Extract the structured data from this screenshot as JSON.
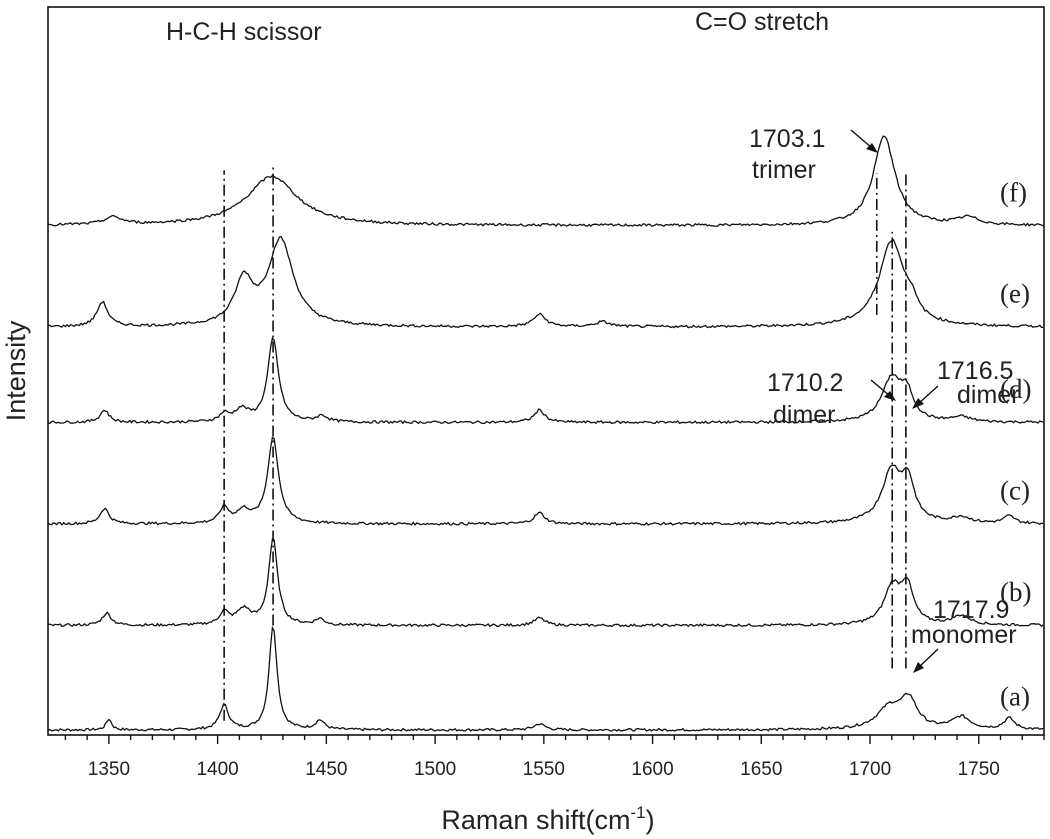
{
  "chart_data": {
    "type": "line",
    "title": "",
    "xlabel": "Raman shift(cm",
    "xlabel_sup": "-1",
    "xlabel_end": ")",
    "ylabel": "Intensity",
    "xlim": [
      1322,
      1780
    ],
    "ylim": [
      0,
      1
    ],
    "x_ticks": [
      1350,
      1400,
      1450,
      1500,
      1550,
      1600,
      1650,
      1700,
      1750
    ],
    "x_minor_step": 10,
    "grid": false,
    "legend": "none",
    "series": [
      {
        "name": "(a)",
        "offset": 0.0,
        "peaks": [
          [
            1350,
            1.5,
            0.018
          ],
          [
            1403,
            2.5,
            0.04
          ],
          [
            1425.5,
            2.2,
            0.17
          ],
          [
            1447,
            2.5,
            0.015
          ],
          [
            1548,
            3,
            0.01
          ],
          [
            1709,
            7,
            0.035
          ],
          [
            1717.9,
            4.5,
            0.045
          ],
          [
            1742,
            5,
            0.02
          ],
          [
            1764,
            3,
            0.018
          ]
        ]
      },
      {
        "name": "(b)",
        "offset": 0.17,
        "peaks": [
          [
            1349,
            2.5,
            0.02
          ],
          [
            1403,
            2.5,
            0.02
          ],
          [
            1412,
            4,
            0.025
          ],
          [
            1425.5,
            2.5,
            0.14
          ],
          [
            1447,
            2.5,
            0.01
          ],
          [
            1548,
            3,
            0.012
          ],
          [
            1710.2,
            4.5,
            0.06
          ],
          [
            1717,
            3.5,
            0.06
          ],
          [
            1742,
            5,
            0.015
          ]
        ]
      },
      {
        "name": "(c)",
        "offset": 0.335,
        "peaks": [
          [
            1348,
            2.5,
            0.025
          ],
          [
            1403,
            2.5,
            0.025
          ],
          [
            1412,
            4,
            0.02
          ],
          [
            1425.5,
            3,
            0.14
          ],
          [
            1548,
            3,
            0.018
          ],
          [
            1710,
            5.5,
            0.085
          ],
          [
            1717.5,
            3.5,
            0.06
          ],
          [
            1742,
            5,
            0.01
          ],
          [
            1764,
            3,
            0.012
          ]
        ]
      },
      {
        "name": "(d)",
        "offset": 0.5,
        "peaks": [
          [
            1348,
            2.5,
            0.02
          ],
          [
            1403,
            2.5,
            0.012
          ],
          [
            1411,
            4,
            0.02
          ],
          [
            1425.5,
            3,
            0.135
          ],
          [
            1448,
            3,
            0.01
          ],
          [
            1548,
            3,
            0.02
          ],
          [
            1710,
            5.5,
            0.07
          ],
          [
            1717,
            3.5,
            0.04
          ],
          [
            1742,
            5,
            0.008
          ]
        ]
      },
      {
        "name": "(e)",
        "offset": 0.655,
        "peaks": [
          [
            1347,
            3,
            0.04
          ],
          [
            1412,
            5,
            0.07
          ],
          [
            1429,
            7,
            0.14
          ],
          [
            1548,
            3.5,
            0.02
          ],
          [
            1577,
            4,
            0.008
          ],
          [
            1710,
            7,
            0.14
          ],
          [
            1719,
            3,
            0.02
          ]
        ]
      },
      {
        "name": "(f)",
        "offset": 0.82,
        "peaks": [
          [
            1352,
            5,
            0.012
          ],
          [
            1425,
            14,
            0.08
          ],
          [
            1706.5,
            6,
            0.145
          ],
          [
            1745,
            6,
            0.012
          ]
        ]
      }
    ],
    "ref_lines": [
      {
        "x": 1403,
        "from": 0.015,
        "to": 0.91
      },
      {
        "x": 1425.5,
        "from": 0.17,
        "to": 0.92
      },
      {
        "x": 1703.1,
        "from": 0.675,
        "to": 0.905
      },
      {
        "x": 1710.2,
        "from": 0.1,
        "to": 0.81
      },
      {
        "x": 1716.5,
        "from": 0.1,
        "to": 0.91
      }
    ],
    "annotations": {
      "scissor": "H-C-H scissor",
      "stretch": "C=O stretch",
      "trimer_value": "1703.1",
      "trimer_label": "trimer",
      "dimer1_value": "1710.2",
      "dimer1_label": "dimer",
      "dimer2_value": "1716.5",
      "dimer2_label": "dimer",
      "monomer_value": "1717.9",
      "monomer_label": "monomer"
    }
  }
}
